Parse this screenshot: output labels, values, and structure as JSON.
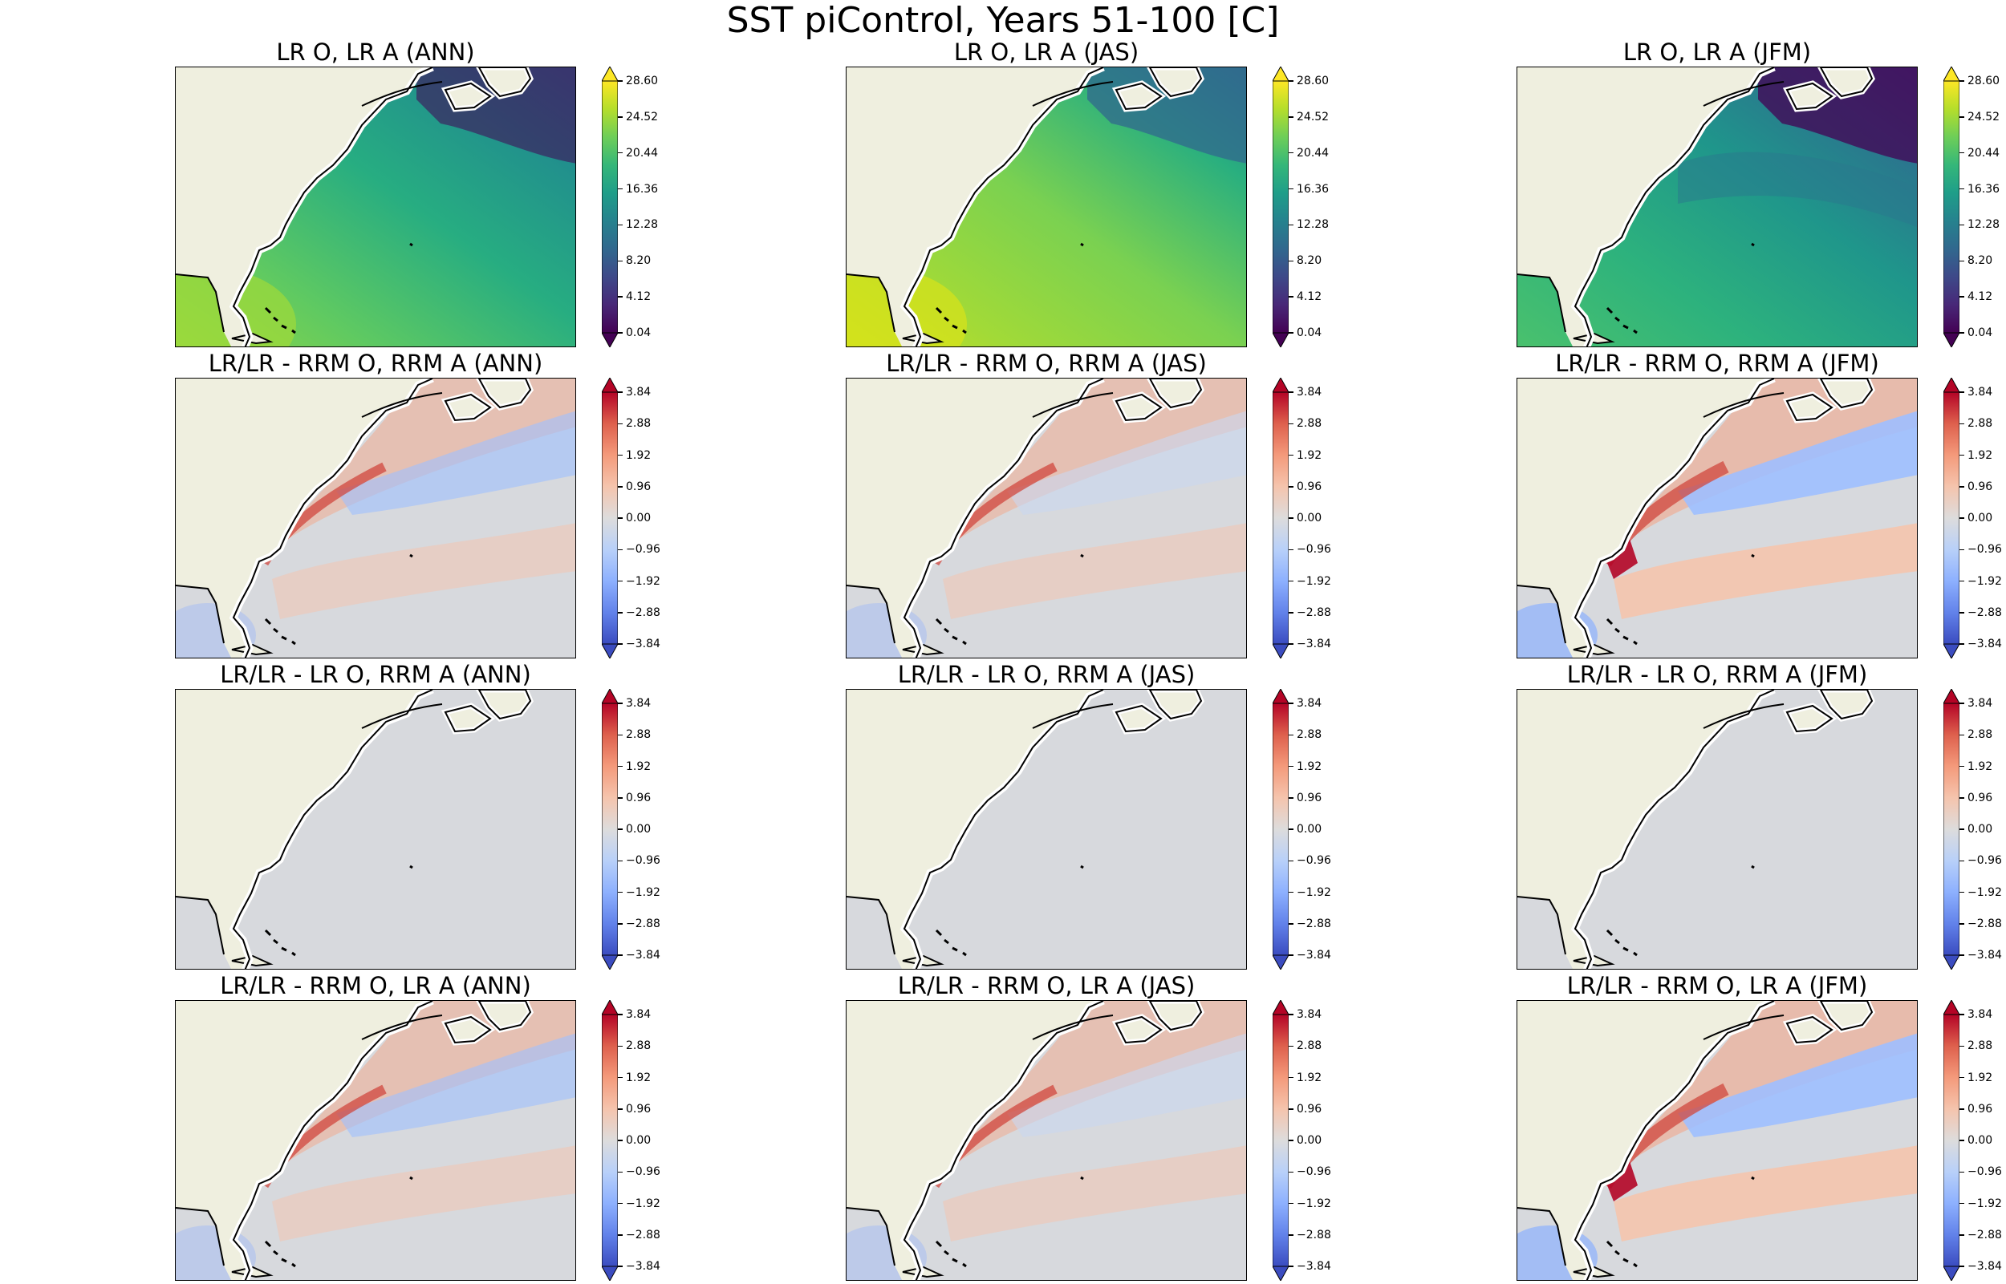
{
  "suptitle": "SST piControl, Years 51-100 [C]",
  "chart_data": {
    "type": "heatmap",
    "title": "SST piControl, Years 51-100 [C]",
    "region": "Northwest Atlantic / US East Coast",
    "rows": [
      {
        "name": "absolute",
        "colormap": "viridis",
        "colorbar_ticks": [
          "0.04",
          "4.12",
          "8.20",
          "12.28",
          "16.36",
          "20.44",
          "24.52",
          "28.60"
        ],
        "vmin": 0.04,
        "vmax": 28.6,
        "extend": "both",
        "panels": [
          {
            "title": "LR O, LR A (ANN)",
            "season": "ANN"
          },
          {
            "title": "LR O, LR A (JAS)",
            "season": "JAS"
          },
          {
            "title": "LR O, LR A (JFM)",
            "season": "JFM"
          }
        ]
      },
      {
        "name": "diff_rrm_o_rrm_a",
        "colormap": "coolwarm",
        "colorbar_ticks": [
          "−3.84",
          "−2.88",
          "−1.92",
          "−0.96",
          "0.00",
          "0.96",
          "1.92",
          "2.88",
          "3.84"
        ],
        "vmin": -3.84,
        "vmax": 3.84,
        "extend": "both",
        "panels": [
          {
            "title": "LR/LR - RRM O, RRM A (ANN)",
            "season": "ANN"
          },
          {
            "title": "LR/LR - RRM O, RRM A (JAS)",
            "season": "JAS"
          },
          {
            "title": "LR/LR - RRM O, RRM A (JFM)",
            "season": "JFM"
          }
        ]
      },
      {
        "name": "diff_lr_o_rrm_a",
        "colormap": "coolwarm",
        "colorbar_ticks": [
          "−3.84",
          "−2.88",
          "−1.92",
          "−0.96",
          "0.00",
          "0.96",
          "1.92",
          "2.88",
          "3.84"
        ],
        "vmin": -3.84,
        "vmax": 3.84,
        "extend": "both",
        "panels": [
          {
            "title": "LR/LR - LR O, RRM A (ANN)",
            "season": "ANN"
          },
          {
            "title": "LR/LR - LR O, RRM A (JAS)",
            "season": "JAS"
          },
          {
            "title": "LR/LR - LR O, RRM A (JFM)",
            "season": "JFM"
          }
        ]
      },
      {
        "name": "diff_rrm_o_lr_a",
        "colormap": "coolwarm",
        "colorbar_ticks": [
          "−3.84",
          "−2.88",
          "−1.92",
          "−0.96",
          "0.00",
          "0.96",
          "1.92",
          "2.88",
          "3.84"
        ],
        "vmin": -3.84,
        "vmax": 3.84,
        "extend": "both",
        "panels": [
          {
            "title": "LR/LR - RRM O, LR A (ANN)",
            "season": "ANN"
          },
          {
            "title": "LR/LR - RRM O, LR A (JAS)",
            "season": "JAS"
          },
          {
            "title": "LR/LR - RRM O, LR A (JFM)",
            "season": "JFM"
          }
        ]
      }
    ]
  },
  "colors": {
    "land": "#efefdf",
    "coast": "#000000",
    "neutral_ocean": "#d7d9dd"
  }
}
